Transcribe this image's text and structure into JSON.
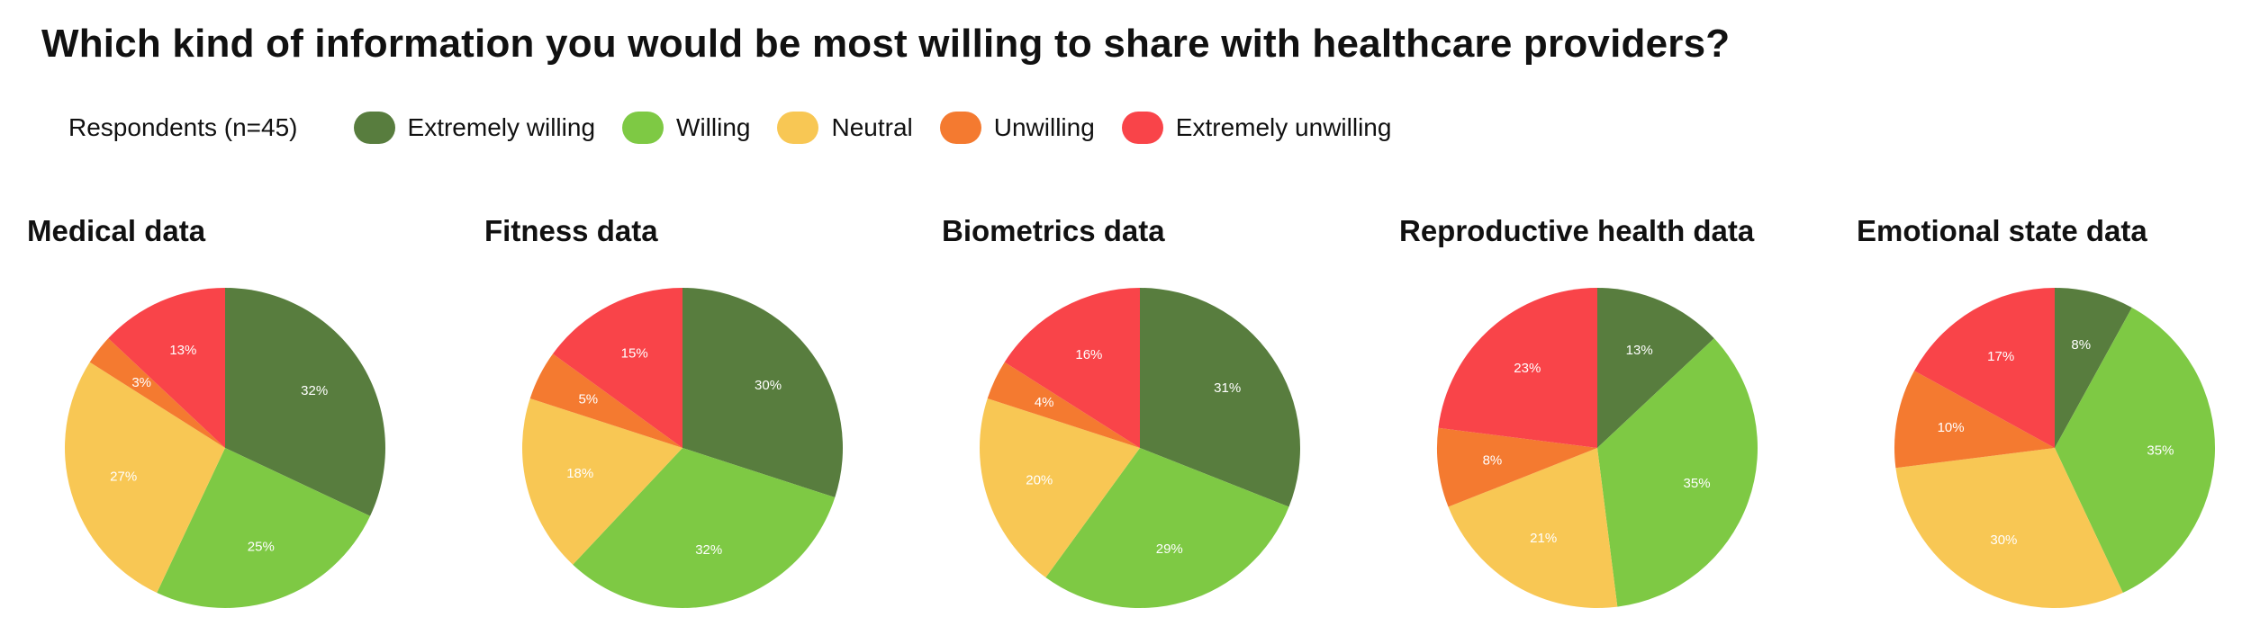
{
  "title": "Which kind of information you would be most willing to share with healthcare providers?",
  "legend": {
    "caption": "Respondents (n=45)",
    "items": [
      {
        "label": "Extremely willing",
        "color": "#587d3e"
      },
      {
        "label": "Willing",
        "color": "#7ec944"
      },
      {
        "label": "Neutral",
        "color": "#f8c754"
      },
      {
        "label": "Unwilling",
        "color": "#f47a30"
      },
      {
        "label": "Extremely unwilling",
        "color": "#f94449"
      }
    ]
  },
  "chart_data": [
    {
      "type": "pie",
      "title": "Medical data",
      "categories": [
        "Extremely willing",
        "Willing",
        "Neutral",
        "Unwilling",
        "Extremely unwilling"
      ],
      "values": [
        32,
        25,
        27,
        3,
        13
      ],
      "labels": [
        "32%",
        "25%",
        "27%",
        "3%",
        "13%"
      ]
    },
    {
      "type": "pie",
      "title": "Fitness data",
      "categories": [
        "Extremely willing",
        "Willing",
        "Neutral",
        "Unwilling",
        "Extremely unwilling"
      ],
      "values": [
        30,
        32,
        18,
        5,
        15
      ],
      "labels": [
        "30%",
        "32%",
        "18%",
        "5%",
        "15%"
      ]
    },
    {
      "type": "pie",
      "title": "Biometrics data",
      "categories": [
        "Extremely willing",
        "Willing",
        "Neutral",
        "Unwilling",
        "Extremely unwilling"
      ],
      "values": [
        31,
        29,
        20,
        4,
        16
      ],
      "labels": [
        "31%",
        "29%",
        "20%",
        "4%",
        "16%"
      ]
    },
    {
      "type": "pie",
      "title": "Reproductive health data",
      "categories": [
        "Extremely willing",
        "Willing",
        "Neutral",
        "Unwilling",
        "Extremely unwilling"
      ],
      "values": [
        13,
        35,
        21,
        8,
        23
      ],
      "labels": [
        "13%",
        "35%",
        "21%",
        "8%",
        "23%"
      ]
    },
    {
      "type": "pie",
      "title": "Emotional state data",
      "categories": [
        "Extremely willing",
        "Willing",
        "Neutral",
        "Unwilling",
        "Extremely unwilling"
      ],
      "values": [
        8,
        35,
        30,
        10,
        17
      ],
      "labels": [
        "8%",
        "35%",
        "30%",
        "10%",
        "17%"
      ]
    }
  ]
}
